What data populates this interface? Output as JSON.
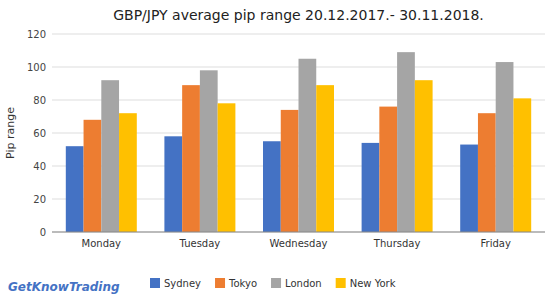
{
  "chart_data": {
    "type": "bar",
    "title": "GBP/JPY average pip range 20.12.2017.- 30.11.2018.",
    "ylabel": "Pip range",
    "categories": [
      "Monday",
      "Tuesday",
      "Wednesday",
      "Thursday",
      "Friday"
    ],
    "series": [
      {
        "name": "Sydney",
        "color": "#4472C4",
        "values": [
          52,
          58,
          55,
          54,
          53
        ]
      },
      {
        "name": "Tokyo",
        "color": "#ED7D31",
        "values": [
          68,
          89,
          74,
          76,
          72
        ]
      },
      {
        "name": "London",
        "color": "#A5A5A5",
        "values": [
          92,
          98,
          105,
          109,
          103
        ]
      },
      {
        "name": "New York",
        "color": "#FFC000",
        "values": [
          72,
          78,
          89,
          92,
          81
        ]
      }
    ],
    "ylim": [
      0,
      120
    ],
    "yticks": [
      0,
      20,
      40,
      60,
      80,
      100,
      120
    ],
    "grid": true,
    "legend": "bottom",
    "annotations": [
      {
        "text": "GetKnowTrading",
        "color": "#4472C4"
      }
    ]
  }
}
